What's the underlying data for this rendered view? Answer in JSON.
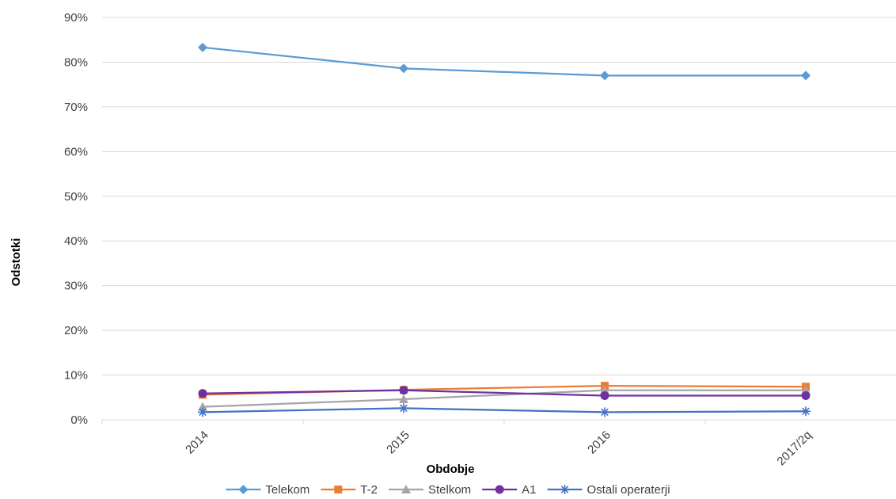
{
  "chart_data": {
    "type": "line",
    "categories": [
      "2014",
      "2015",
      "2016",
      "2017/2q"
    ],
    "xlabel": "Obdobje",
    "ylabel": "Odstotki",
    "ylim": [
      0,
      90
    ],
    "yticks": [
      "0%",
      "10%",
      "20%",
      "30%",
      "40%",
      "50%",
      "60%",
      "70%",
      "80%",
      "90%"
    ],
    "grid": true,
    "legend_position": "bottom",
    "series": [
      {
        "name": "Telekom",
        "values": [
          83.3,
          78.6,
          77.0,
          77.0
        ],
        "color": "#5B9BD5",
        "marker": "diamond"
      },
      {
        "name": "T-2",
        "values": [
          5.6,
          6.7,
          7.6,
          7.4
        ],
        "color": "#ED7D31",
        "marker": "square"
      },
      {
        "name": "Stelkom",
        "values": [
          2.9,
          4.6,
          6.6,
          6.6
        ],
        "color": "#A5A5A5",
        "marker": "triangle"
      },
      {
        "name": "A1",
        "values": [
          5.9,
          6.6,
          5.4,
          5.4
        ],
        "color": "#7030A0",
        "marker": "circle"
      },
      {
        "name": "Ostali operaterji",
        "values": [
          1.7,
          2.6,
          1.7,
          1.9
        ],
        "color": "#4472C4",
        "marker": "star"
      }
    ]
  }
}
